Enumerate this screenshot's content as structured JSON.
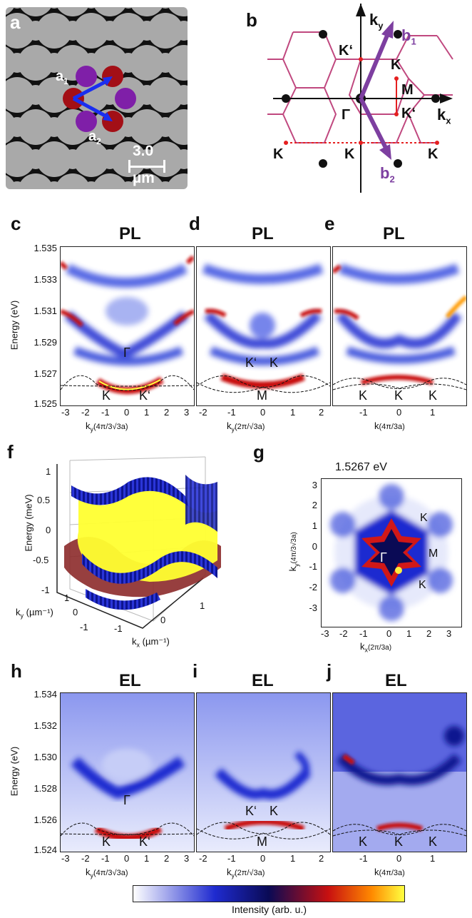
{
  "panels": {
    "a": {
      "label": "a",
      "vec1": "a",
      "vec1_sub": "1",
      "vec2": "a",
      "vec2_sub": "2",
      "scalebar_value": "3.0",
      "scalebar_unit": "µm"
    },
    "b": {
      "label": "b",
      "kx": "k",
      "kx_sub": "x",
      "ky": "k",
      "ky_sub": "y",
      "b1": "b",
      "b1_sub": "1",
      "b2": "b",
      "b2_sub": "2",
      "points": [
        "K‘",
        "K",
        "M",
        "K‘",
        "Γ",
        "K",
        "K",
        "K"
      ]
    },
    "c": {
      "label": "c",
      "title": "PL",
      "xlabel": "k",
      "xlabel_sub": "y",
      "xlabel_unit": "(4π/3√3a)",
      "ylabel": "Energy (eV)",
      "points": [
        "Γ",
        "K",
        "K‘"
      ]
    },
    "d": {
      "label": "d",
      "title": "PL",
      "xlabel": "k",
      "xlabel_sub": "y",
      "xlabel_unit": "(2π/√3a)",
      "points": [
        "K‘",
        "K",
        "M"
      ]
    },
    "e": {
      "label": "e",
      "title": "PL",
      "xlabel": "k",
      "xlabel_unit": "(4π/3a)",
      "points": [
        "K",
        "K",
        "K"
      ]
    },
    "f": {
      "label": "f",
      "zlabel": "Energy (meV)",
      "ylabel": "k",
      "ylabel_sub": "y",
      "ylabel_unit": "(µm⁻¹)",
      "xlabel": "k",
      "xlabel_sub": "x",
      "xlabel_unit": "(µm⁻¹)"
    },
    "g": {
      "label": "g",
      "title": "1.5267 eV",
      "xlabel": "k",
      "xlabel_sub": "x",
      "xlabel_unit": "(2π/3a)",
      "ylabel": "k",
      "ylabel_sub": "y",
      "ylabel_unit": "(4π/3√3a)",
      "points": [
        "K",
        "M",
        "K",
        "Γ"
      ]
    },
    "h": {
      "label": "h",
      "title": "EL",
      "xlabel": "k",
      "xlabel_sub": "y",
      "xlabel_unit": "(4π/3√3a)",
      "ylabel": "Energy (eV)",
      "points": [
        "Γ",
        "K",
        "K‘"
      ]
    },
    "i": {
      "label": "i",
      "title": "EL",
      "xlabel": "k",
      "xlabel_sub": "y",
      "xlabel_unit": "(2π/√3a)",
      "points": [
        "K‘",
        "K",
        "M"
      ]
    },
    "j": {
      "label": "j",
      "title": "EL",
      "xlabel": "k",
      "xlabel_unit": "(4π/3a)",
      "points": [
        "K",
        "K",
        "K"
      ]
    }
  },
  "colorbar": {
    "label": "Intensity (arb. u.)",
    "colors": [
      "#ffffff",
      "#1f2bd0",
      "#0a0a55",
      "#c81010",
      "#ff8a00",
      "#ffff40"
    ]
  },
  "chart_data": [
    {
      "type": "heatmap",
      "panel": "c",
      "ylabel": "Energy (eV)",
      "ylim": [
        1.525,
        1.535
      ],
      "xlim": [
        -3.3,
        3.3
      ],
      "y_ticks": [
        "1.525",
        "1.527",
        "1.529",
        "1.531",
        "1.533",
        "1.535"
      ],
      "x_ticks": [
        "-3",
        "-2",
        "-1",
        "0",
        "1",
        "2",
        "3"
      ]
    },
    {
      "type": "heatmap",
      "panel": "d",
      "ylim": [
        1.525,
        1.535
      ],
      "xlim": [
        -2.2,
        2.2
      ],
      "x_ticks": [
        "-2",
        "-1",
        "0",
        "1",
        "2"
      ]
    },
    {
      "type": "heatmap",
      "panel": "e",
      "ylim": [
        1.525,
        1.535
      ],
      "xlim": [
        -1.9,
        1.9
      ],
      "x_ticks": [
        "-1",
        "0",
        "1"
      ]
    },
    {
      "type": "heatmap",
      "panel": "g",
      "xlim": [
        -3.5,
        3.5
      ],
      "ylim": [
        -3.5,
        3.5
      ],
      "x_ticks": [
        "-3",
        "-2",
        "-1",
        "0",
        "1",
        "2",
        "3"
      ],
      "y_ticks": [
        "3",
        "2",
        "1",
        "0",
        "-1",
        "-2",
        "-3"
      ]
    },
    {
      "type": "heatmap",
      "panel": "h",
      "ylabel": "Energy (eV)",
      "ylim": [
        1.524,
        1.534
      ],
      "xlim": [
        -3.3,
        3.3
      ],
      "y_ticks": [
        "1.524",
        "1.526",
        "1.528",
        "1.530",
        "1.532",
        "1.534"
      ],
      "x_ticks": [
        "-3",
        "-2",
        "-1",
        "0",
        "1",
        "2",
        "3"
      ]
    },
    {
      "type": "heatmap",
      "panel": "i",
      "ylim": [
        1.524,
        1.534
      ],
      "xlim": [
        -2.2,
        2.2
      ],
      "x_ticks": [
        "-2",
        "-1",
        "0",
        "1",
        "2"
      ]
    },
    {
      "type": "heatmap",
      "panel": "j",
      "ylim": [
        1.524,
        1.534
      ],
      "xlim": [
        -1.9,
        1.9
      ],
      "x_ticks": [
        "-1",
        "0",
        "1"
      ]
    },
    {
      "type": "other",
      "panel": "f",
      "z_ticks": [
        "1",
        "0.5",
        "0",
        "-0.5",
        "-1"
      ],
      "y_ticks": [
        "1",
        "0",
        "-1"
      ],
      "x_ticks": [
        "-1",
        "0",
        "1"
      ]
    }
  ]
}
